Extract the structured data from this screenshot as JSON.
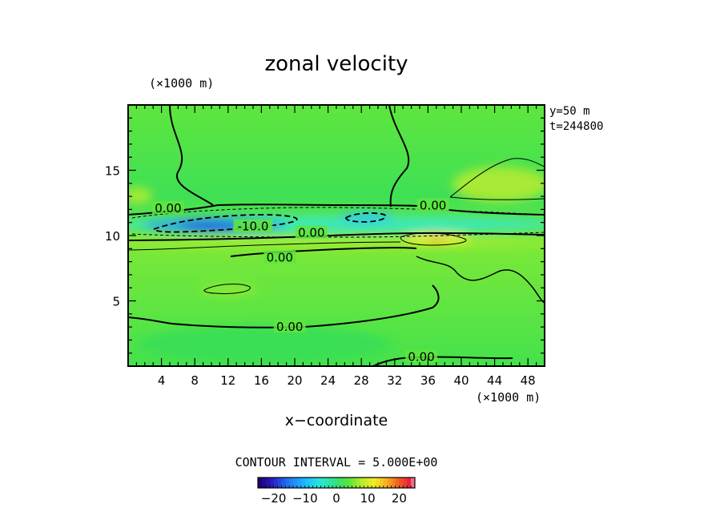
{
  "chart_data": {
    "type": "heatmap",
    "title": "zonal velocity",
    "xlabel": "x−coordinate",
    "x_unit": "(×1000 m)",
    "y_unit": "(×1000 m)",
    "xlim": [
      0,
      50
    ],
    "ylim": [
      0,
      20
    ],
    "x_ticks": [
      4,
      8,
      12,
      16,
      20,
      24,
      28,
      32,
      36,
      40,
      44,
      48
    ],
    "y_ticks": [
      5,
      10,
      15
    ],
    "info": [
      "y=50 m",
      "t=244800"
    ],
    "contour_interval_text": "CONTOUR INTERVAL = 5.000E+00",
    "colorbar": {
      "range": [
        -25,
        25
      ],
      "tick_values": [
        -20,
        -10,
        0,
        10,
        20
      ],
      "tick_labels": [
        "−20",
        "−10",
        "0",
        "10",
        "20"
      ]
    },
    "contour_labels": [
      {
        "text": "0.00",
        "x": 4.8,
        "y": 12.1
      },
      {
        "text": "-10.0",
        "x": 15.0,
        "y": 10.7
      },
      {
        "text": "0.00",
        "x": 22.0,
        "y": 10.2
      },
      {
        "text": "0.00",
        "x": 36.6,
        "y": 12.3
      },
      {
        "text": "0.00",
        "x": 18.2,
        "y": 8.3
      },
      {
        "text": "0.00",
        "x": 19.4,
        "y": 3.0
      },
      {
        "text": "0.00",
        "x": 35.2,
        "y": 0.7
      }
    ],
    "features": [
      {
        "kind": "jet-core",
        "value": -12,
        "x": 11,
        "y": 10.7
      },
      {
        "kind": "jet-core",
        "value": -9,
        "x": 28.5,
        "y": 11.5
      },
      {
        "kind": "max",
        "value": 10,
        "x": 37.5,
        "y": 9.8
      }
    ],
    "grid": false,
    "legend": "colorbar-bottom"
  }
}
